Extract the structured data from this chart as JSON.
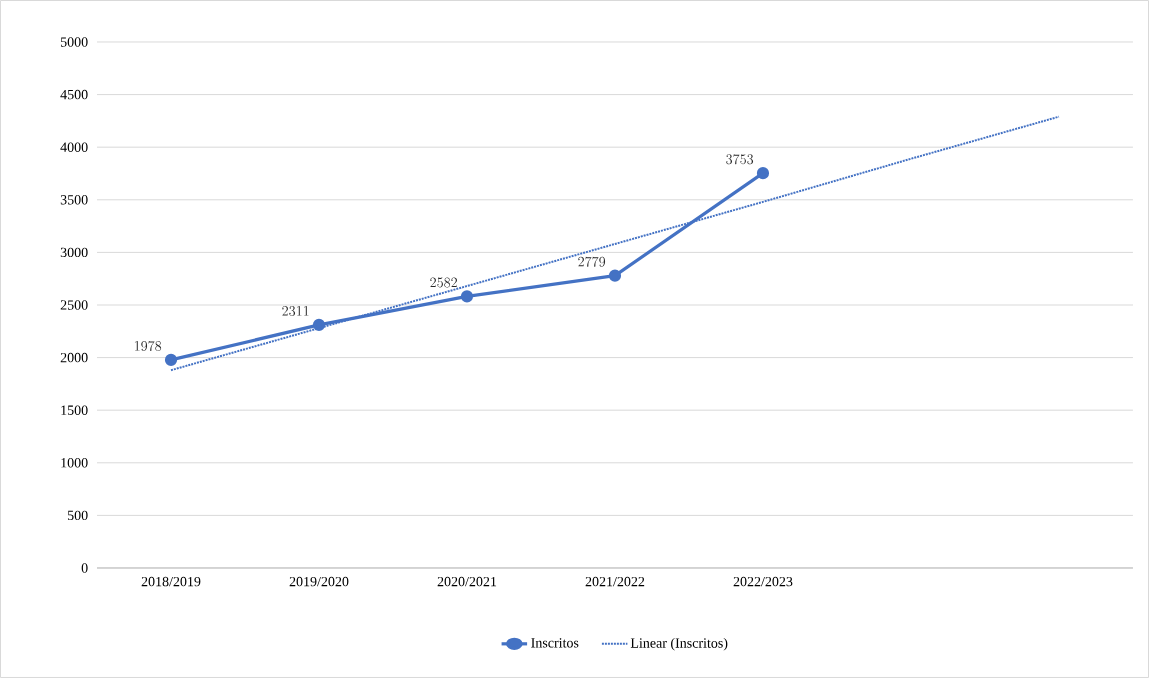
{
  "chart_data": {
    "type": "line",
    "categories": [
      "2018/2019",
      "2019/2020",
      "2020/2021",
      "2021/2022",
      "2022/2023",
      null,
      null
    ],
    "series": [
      {
        "name": "Inscritos",
        "color": "#4472c4",
        "values": [
          1978,
          2311,
          2582,
          2779,
          3753,
          null,
          null
        ],
        "marker": "circle",
        "line_style": "solid",
        "data_labels": true
      },
      {
        "name": "Linear (Inscritos)",
        "color": "#4472c4",
        "values": [
          1880,
          2280,
          2680,
          3080,
          3480,
          3890,
          4290
        ],
        "marker": "none",
        "line_style": "dotted"
      }
    ],
    "ylim": [
      0,
      5000
    ],
    "yticks": [
      0,
      500,
      1000,
      1500,
      2000,
      2500,
      3000,
      3500,
      4000,
      4500,
      5000
    ],
    "grid": "y",
    "legend": "bottom"
  }
}
